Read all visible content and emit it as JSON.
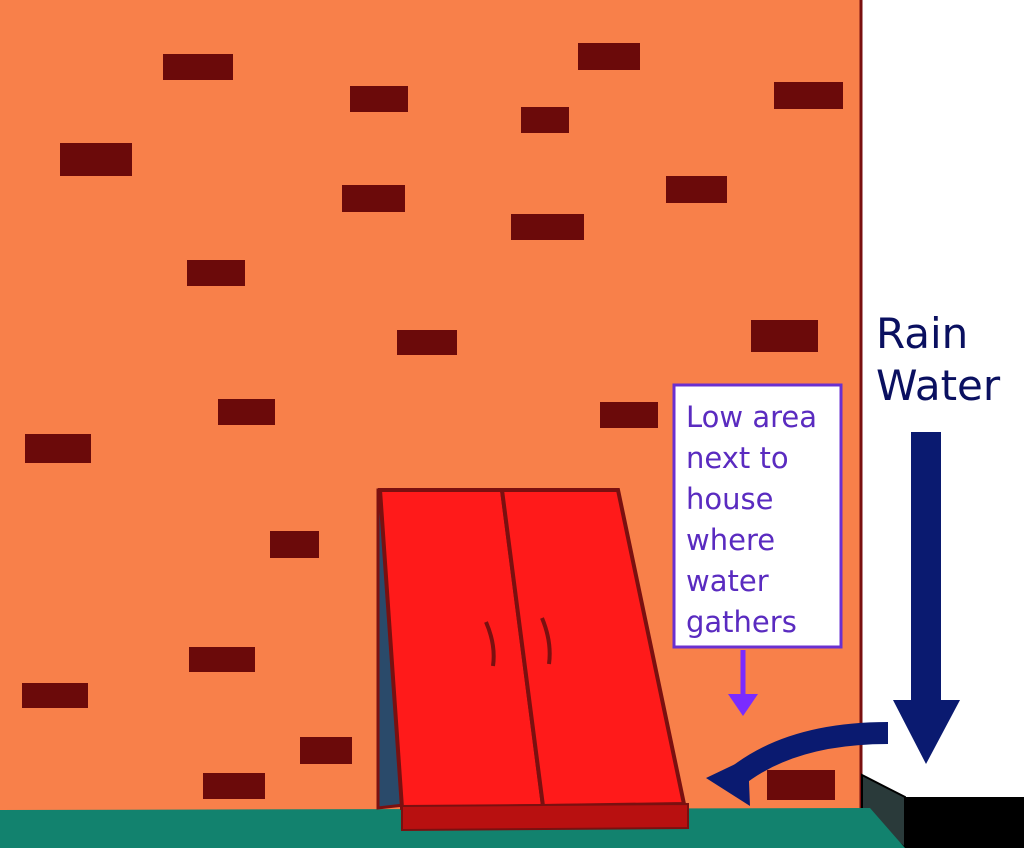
{
  "colors": {
    "wall": "#F8804A",
    "wall_edge": "#7A1010",
    "brick": "#6B0A0A",
    "ground": "#12826E",
    "door": "#FF1A1A",
    "door_outline": "#7A1010",
    "door_side": "#2A4A6A",
    "callout_border": "#6A30D0",
    "callout_text": "#5A2BC0",
    "callout_arrow": "#7A2BFF",
    "rain_label": "#0A1060",
    "rain_arrow": "#0A1A70",
    "base": "#000000",
    "outside": "#FFFFFF"
  },
  "callout": {
    "lines": [
      "Low area",
      "next to",
      "house",
      "where",
      "water",
      "gathers"
    ]
  },
  "rain_label": {
    "lines": [
      "Rain",
      "Water"
    ]
  },
  "icons": {
    "callout_arrow": "arrow-down-icon",
    "rain_arrow": "arrow-down-icon",
    "flow_arrow": "curved-arrow-left-icon"
  }
}
